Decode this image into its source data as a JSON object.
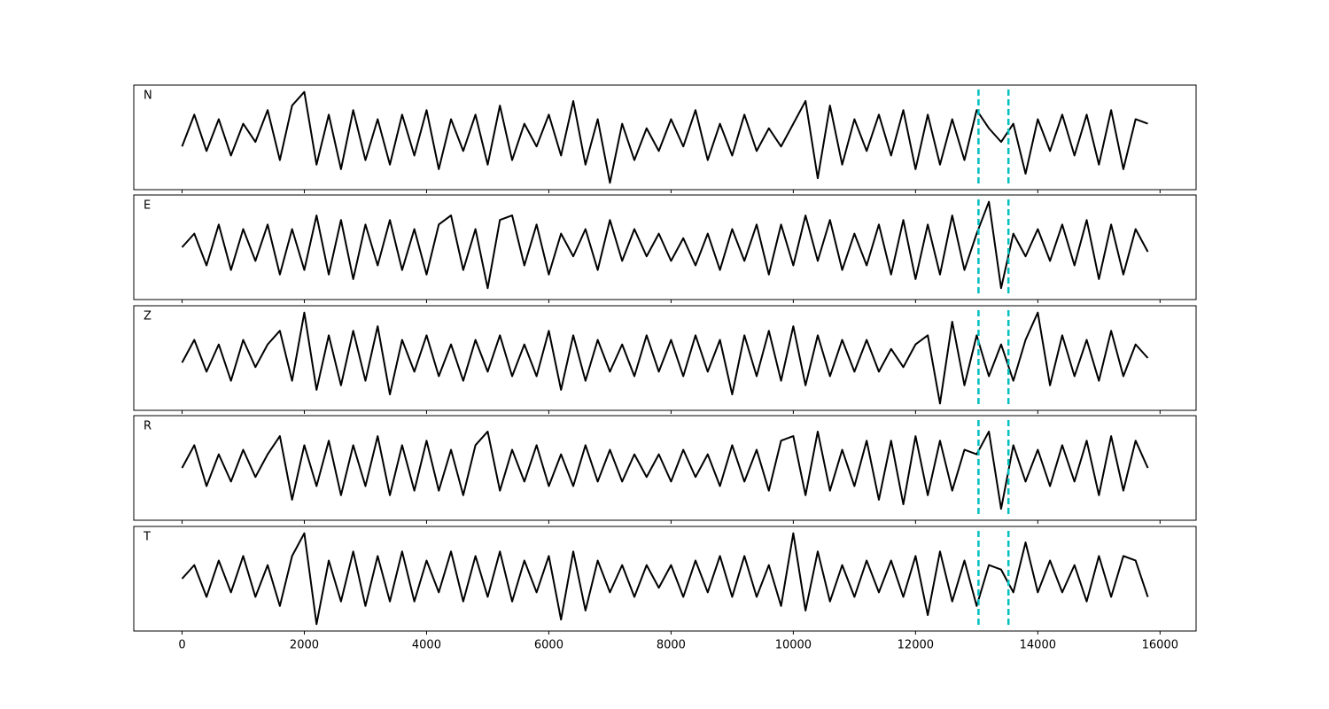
{
  "chart_data": [
    {
      "type": "line",
      "xlim": [
        -790,
        16590
      ],
      "ylim": [
        -1.15,
        1.15
      ],
      "xticks": [
        0,
        2000,
        4000,
        6000,
        8000,
        10000,
        12000,
        14000,
        16000
      ],
      "xticklabels": false,
      "x": [
        0,
        200,
        400,
        600,
        800,
        1000,
        1200,
        1400,
        1600,
        1800,
        2000,
        2200,
        2400,
        2600,
        2800,
        3000,
        3200,
        3400,
        3600,
        3800,
        4000,
        4200,
        4400,
        4600,
        4800,
        5000,
        5200,
        5400,
        5600,
        5800,
        6000,
        6200,
        6400,
        6600,
        6800,
        7000,
        7200,
        7400,
        7600,
        7800,
        8000,
        8200,
        8400,
        8600,
        8800,
        9000,
        9200,
        9400,
        9600,
        9800,
        10000,
        10200,
        10400,
        10600,
        10800,
        11000,
        11200,
        11400,
        11600,
        11800,
        12000,
        12200,
        12400,
        12600,
        12800,
        13000,
        13200,
        13400,
        13600,
        13800,
        14000,
        14200,
        14400,
        14600,
        14800,
        15000,
        15200,
        15400,
        15600,
        15800
      ],
      "series": [
        {
          "name": "N",
          "color": "#000000",
          "values": [
            -0.2,
            0.5,
            -0.3,
            0.4,
            -0.4,
            0.3,
            -0.1,
            0.6,
            -0.5,
            0.7,
            1.0,
            -0.6,
            0.5,
            -0.7,
            0.6,
            -0.5,
            0.4,
            -0.6,
            0.5,
            -0.4,
            0.6,
            -0.7,
            0.4,
            -0.3,
            0.5,
            -0.6,
            0.7,
            -0.5,
            0.3,
            -0.2,
            0.5,
            -0.4,
            0.8,
            -0.6,
            0.4,
            -1.0,
            0.3,
            -0.5,
            0.2,
            -0.3,
            0.4,
            -0.2,
            0.6,
            -0.5,
            0.3,
            -0.4,
            0.5,
            -0.3,
            0.2,
            -0.2,
            0.3,
            0.8,
            -0.9,
            0.7,
            -0.6,
            0.4,
            -0.3,
            0.5,
            -0.4,
            0.6,
            -0.7,
            0.5,
            -0.6,
            0.4,
            -0.5,
            0.6,
            0.2,
            -0.1,
            0.3,
            -0.8,
            0.4,
            -0.3,
            0.5,
            -0.4,
            0.5,
            -0.6,
            0.6,
            -0.7,
            0.4,
            0.3
          ]
        }
      ],
      "vlines": [
        13030,
        13520
      ],
      "vline_color": "#00bfbf"
    },
    {
      "type": "line",
      "xlim": [
        -790,
        16590
      ],
      "ylim": [
        -1.15,
        1.15
      ],
      "xticks": [
        0,
        2000,
        4000,
        6000,
        8000,
        10000,
        12000,
        14000,
        16000
      ],
      "xticklabels": false,
      "x": [
        0,
        200,
        400,
        600,
        800,
        1000,
        1200,
        1400,
        1600,
        1800,
        2000,
        2200,
        2400,
        2600,
        2800,
        3000,
        3200,
        3400,
        3600,
        3800,
        4000,
        4200,
        4400,
        4600,
        4800,
        5000,
        5200,
        5400,
        5600,
        5800,
        6000,
        6200,
        6400,
        6600,
        6800,
        7000,
        7200,
        7400,
        7600,
        7800,
        8000,
        8200,
        8400,
        8600,
        8800,
        9000,
        9200,
        9400,
        9600,
        9800,
        10000,
        10200,
        10400,
        10600,
        10800,
        11000,
        11200,
        11400,
        11600,
        11800,
        12000,
        12200,
        12400,
        12600,
        12800,
        13000,
        13200,
        13400,
        13600,
        13800,
        14000,
        14200,
        14400,
        14600,
        14800,
        15000,
        15200,
        15400,
        15600,
        15800
      ],
      "series": [
        {
          "name": "E",
          "color": "#000000",
          "values": [
            0.0,
            0.3,
            -0.4,
            0.5,
            -0.5,
            0.4,
            -0.3,
            0.5,
            -0.6,
            0.4,
            -0.5,
            0.7,
            -0.6,
            0.6,
            -0.7,
            0.5,
            -0.4,
            0.6,
            -0.5,
            0.4,
            -0.6,
            0.5,
            0.7,
            -0.5,
            0.4,
            -0.9,
            0.6,
            0.7,
            -0.4,
            0.5,
            -0.6,
            0.3,
            -0.2,
            0.4,
            -0.5,
            0.6,
            -0.3,
            0.4,
            -0.2,
            0.3,
            -0.3,
            0.2,
            -0.4,
            0.3,
            -0.5,
            0.4,
            -0.3,
            0.5,
            -0.6,
            0.5,
            -0.4,
            0.7,
            -0.3,
            0.6,
            -0.5,
            0.3,
            -0.4,
            0.5,
            -0.6,
            0.6,
            -0.7,
            0.5,
            -0.6,
            0.7,
            -0.5,
            0.3,
            1.0,
            -0.9,
            0.3,
            -0.2,
            0.4,
            -0.3,
            0.5,
            -0.4,
            0.6,
            -0.7,
            0.5,
            -0.6,
            0.4,
            -0.1
          ]
        }
      ],
      "vlines": [
        13030,
        13520
      ],
      "vline_color": "#00bfbf"
    },
    {
      "type": "line",
      "xlim": [
        -790,
        16590
      ],
      "ylim": [
        -1.15,
        1.15
      ],
      "xticks": [
        0,
        2000,
        4000,
        6000,
        8000,
        10000,
        12000,
        14000,
        16000
      ],
      "xticklabels": false,
      "x": [
        0,
        200,
        400,
        600,
        800,
        1000,
        1200,
        1400,
        1600,
        1800,
        2000,
        2200,
        2400,
        2600,
        2800,
        3000,
        3200,
        3400,
        3600,
        3800,
        4000,
        4200,
        4400,
        4600,
        4800,
        5000,
        5200,
        5400,
        5600,
        5800,
        6000,
        6200,
        6400,
        6600,
        6800,
        7000,
        7200,
        7400,
        7600,
        7800,
        8000,
        8200,
        8400,
        8600,
        8800,
        9000,
        9200,
        9400,
        9600,
        9800,
        10000,
        10200,
        10400,
        10600,
        10800,
        11000,
        11200,
        11400,
        11600,
        11800,
        12000,
        12200,
        12400,
        12600,
        12800,
        13000,
        13200,
        13400,
        13600,
        13800,
        14000,
        14200,
        14400,
        14600,
        14800,
        15000,
        15200,
        15400,
        15600,
        15800
      ],
      "series": [
        {
          "name": "Z",
          "color": "#000000",
          "values": [
            -0.1,
            0.4,
            -0.3,
            0.3,
            -0.5,
            0.4,
            -0.2,
            0.3,
            0.6,
            -0.5,
            1.0,
            -0.7,
            0.5,
            -0.6,
            0.6,
            -0.5,
            0.7,
            -0.8,
            0.4,
            -0.3,
            0.5,
            -0.4,
            0.3,
            -0.5,
            0.4,
            -0.3,
            0.5,
            -0.4,
            0.3,
            -0.4,
            0.6,
            -0.7,
            0.5,
            -0.5,
            0.4,
            -0.3,
            0.3,
            -0.4,
            0.5,
            -0.3,
            0.4,
            -0.4,
            0.5,
            -0.3,
            0.4,
            -0.8,
            0.5,
            -0.4,
            0.6,
            -0.5,
            0.7,
            -0.6,
            0.5,
            -0.4,
            0.4,
            -0.3,
            0.4,
            -0.3,
            0.2,
            -0.2,
            0.3,
            0.5,
            -1.0,
            0.8,
            -0.6,
            0.5,
            -0.4,
            0.3,
            -0.5,
            0.4,
            1.0,
            -0.6,
            0.5,
            -0.4,
            0.4,
            -0.5,
            0.6,
            -0.4,
            0.3,
            0.0
          ]
        }
      ],
      "vlines": [
        13030,
        13520
      ],
      "vline_color": "#00bfbf"
    },
    {
      "type": "line",
      "xlim": [
        -790,
        16590
      ],
      "ylim": [
        -1.15,
        1.15
      ],
      "xticks": [
        0,
        2000,
        4000,
        6000,
        8000,
        10000,
        12000,
        14000,
        16000
      ],
      "xticklabels": false,
      "x": [
        0,
        200,
        400,
        600,
        800,
        1000,
        1200,
        1400,
        1600,
        1800,
        2000,
        2200,
        2400,
        2600,
        2800,
        3000,
        3200,
        3400,
        3600,
        3800,
        4000,
        4200,
        4400,
        4600,
        4800,
        5000,
        5200,
        5400,
        5600,
        5800,
        6000,
        6200,
        6400,
        6600,
        6800,
        7000,
        7200,
        7400,
        7600,
        7800,
        8000,
        8200,
        8400,
        8600,
        8800,
        9000,
        9200,
        9400,
        9600,
        9800,
        10000,
        10200,
        10400,
        10600,
        10800,
        11000,
        11200,
        11400,
        11600,
        11800,
        12000,
        12200,
        12400,
        12600,
        12800,
        13000,
        13200,
        13400,
        13600,
        13800,
        14000,
        14200,
        14400,
        14600,
        14800,
        15000,
        15200,
        15400,
        15600,
        15800
      ],
      "series": [
        {
          "name": "R",
          "color": "#000000",
          "values": [
            0.0,
            0.5,
            -0.4,
            0.3,
            -0.3,
            0.4,
            -0.2,
            0.3,
            0.7,
            -0.7,
            0.5,
            -0.4,
            0.6,
            -0.6,
            0.5,
            -0.4,
            0.7,
            -0.6,
            0.5,
            -0.5,
            0.6,
            -0.5,
            0.4,
            -0.6,
            0.5,
            0.8,
            -0.5,
            0.4,
            -0.3,
            0.5,
            -0.4,
            0.3,
            -0.4,
            0.5,
            -0.3,
            0.4,
            -0.3,
            0.3,
            -0.2,
            0.3,
            -0.3,
            0.4,
            -0.2,
            0.3,
            -0.4,
            0.5,
            -0.3,
            0.4,
            -0.5,
            0.6,
            0.7,
            -0.6,
            0.8,
            -0.5,
            0.4,
            -0.4,
            0.6,
            -0.7,
            0.6,
            -0.8,
            0.7,
            -0.6,
            0.6,
            -0.5,
            0.4,
            0.3,
            0.8,
            -0.9,
            0.5,
            -0.3,
            0.4,
            -0.4,
            0.5,
            -0.3,
            0.6,
            -0.6,
            0.7,
            -0.5,
            0.6,
            0.0
          ]
        }
      ],
      "vlines": [
        13030,
        13520
      ],
      "vline_color": "#00bfbf"
    },
    {
      "type": "line",
      "xlim": [
        -790,
        16590
      ],
      "ylim": [
        -1.15,
        1.15
      ],
      "xticks": [
        0,
        2000,
        4000,
        6000,
        8000,
        10000,
        12000,
        14000,
        16000
      ],
      "xticklabels": true,
      "x": [
        0,
        200,
        400,
        600,
        800,
        1000,
        1200,
        1400,
        1600,
        1800,
        2000,
        2200,
        2400,
        2600,
        2800,
        3000,
        3200,
        3400,
        3600,
        3800,
        4000,
        4200,
        4400,
        4600,
        4800,
        5000,
        5200,
        5400,
        5600,
        5800,
        6000,
        6200,
        6400,
        6600,
        6800,
        7000,
        7200,
        7400,
        7600,
        7800,
        8000,
        8200,
        8400,
        8600,
        8800,
        9000,
        9200,
        9400,
        9600,
        9800,
        10000,
        10200,
        10400,
        10600,
        10800,
        11000,
        11200,
        11400,
        11600,
        11800,
        12000,
        12200,
        12400,
        12600,
        12800,
        13000,
        13200,
        13400,
        13600,
        13800,
        14000,
        14200,
        14400,
        14600,
        14800,
        15000,
        15200,
        15400,
        15600,
        15800
      ],
      "series": [
        {
          "name": "T",
          "color": "#000000",
          "values": [
            0.0,
            0.3,
            -0.4,
            0.4,
            -0.3,
            0.5,
            -0.4,
            0.3,
            -0.6,
            0.5,
            1.0,
            -1.0,
            0.4,
            -0.5,
            0.6,
            -0.6,
            0.5,
            -0.5,
            0.6,
            -0.5,
            0.4,
            -0.3,
            0.6,
            -0.5,
            0.5,
            -0.4,
            0.6,
            -0.5,
            0.4,
            -0.3,
            0.5,
            -0.9,
            0.6,
            -0.7,
            0.4,
            -0.3,
            0.3,
            -0.4,
            0.3,
            -0.2,
            0.3,
            -0.4,
            0.4,
            -0.3,
            0.5,
            -0.4,
            0.5,
            -0.4,
            0.3,
            -0.6,
            1.0,
            -0.7,
            0.6,
            -0.5,
            0.3,
            -0.4,
            0.4,
            -0.3,
            0.4,
            -0.4,
            0.5,
            -0.8,
            0.6,
            -0.5,
            0.4,
            -0.6,
            0.3,
            0.2,
            -0.3,
            0.8,
            -0.3,
            0.4,
            -0.3,
            0.3,
            -0.5,
            0.5,
            -0.4,
            0.5,
            0.4,
            -0.4
          ]
        }
      ],
      "vlines": [
        13030,
        13520
      ],
      "vline_color": "#00bfbf"
    }
  ]
}
